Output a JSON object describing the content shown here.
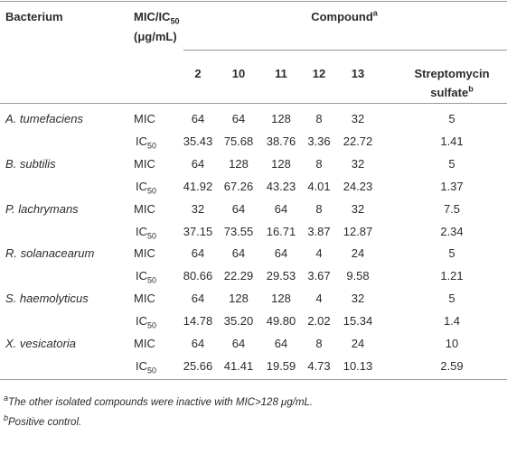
{
  "header": {
    "bacterium": "Bacterium",
    "mic_ic": {
      "main": "MIC/IC",
      "sub": "50",
      "unit": "(μg/mL)"
    },
    "compound": {
      "text": "Compound",
      "sup": "a"
    },
    "columns": [
      {
        "text": "2"
      },
      {
        "text": "10"
      },
      {
        "text": "11"
      },
      {
        "text": "12"
      },
      {
        "text": "13"
      },
      {
        "text": "Streptomycin sulfate",
        "sup": "b"
      }
    ]
  },
  "rows": [
    {
      "name": "A. tumefaciens",
      "lines": [
        {
          "label": {
            "main": "MIC"
          },
          "values": [
            "64",
            "64",
            "128",
            "8",
            "32",
            "5"
          ]
        },
        {
          "label": {
            "main": "IC",
            "sub": "50"
          },
          "values": [
            "35.43",
            "75.68",
            "38.76",
            "3.36",
            "22.72",
            "1.41"
          ]
        }
      ]
    },
    {
      "name": "B. subtilis",
      "lines": [
        {
          "label": {
            "main": "MIC"
          },
          "values": [
            "64",
            "128",
            "128",
            "8",
            "32",
            "5"
          ]
        },
        {
          "label": {
            "main": "IC",
            "sub": "50"
          },
          "values": [
            "41.92",
            "67.26",
            "43.23",
            "4.01",
            "24.23",
            "1.37"
          ]
        }
      ]
    },
    {
      "name": "P. lachrymans",
      "lines": [
        {
          "label": {
            "main": "MIC"
          },
          "values": [
            "32",
            "64",
            "64",
            "8",
            "32",
            "7.5"
          ]
        },
        {
          "label": {
            "main": "IC",
            "sub": "50"
          },
          "values": [
            "37.15",
            "73.55",
            "16.71",
            "3.87",
            "12.87",
            "2.34"
          ]
        }
      ]
    },
    {
      "name": "R. solanacearum",
      "lines": [
        {
          "label": {
            "main": "MIC"
          },
          "values": [
            "64",
            "64",
            "64",
            "4",
            "24",
            "5"
          ]
        },
        {
          "label": {
            "main": "IC",
            "sub": "50"
          },
          "values": [
            "80.66",
            "22.29",
            "29.53",
            "3.67",
            "9.58",
            "1.21"
          ]
        }
      ]
    },
    {
      "name": "S. haemolyticus",
      "lines": [
        {
          "label": {
            "main": "MIC"
          },
          "values": [
            "64",
            "128",
            "128",
            "4",
            "32",
            "5"
          ]
        },
        {
          "label": {
            "main": "IC",
            "sub": "50"
          },
          "values": [
            "14.78",
            "35.20",
            "49.80",
            "2.02",
            "15.34",
            "1.4"
          ]
        }
      ]
    },
    {
      "name": "X. vesicatoria",
      "lines": [
        {
          "label": {
            "main": "MIC"
          },
          "values": [
            "64",
            "64",
            "64",
            "8",
            "24",
            "10"
          ]
        },
        {
          "label": {
            "main": "IC",
            "sub": "50"
          },
          "values": [
            "25.66",
            "41.41",
            "19.59",
            "4.73",
            "10.13",
            "2.59"
          ]
        }
      ]
    }
  ],
  "footnotes": [
    {
      "mark": "a",
      "text": "The other isolated compounds were inactive with MIC>128 μg/mL."
    },
    {
      "mark": "b",
      "text": "Positive control."
    }
  ]
}
